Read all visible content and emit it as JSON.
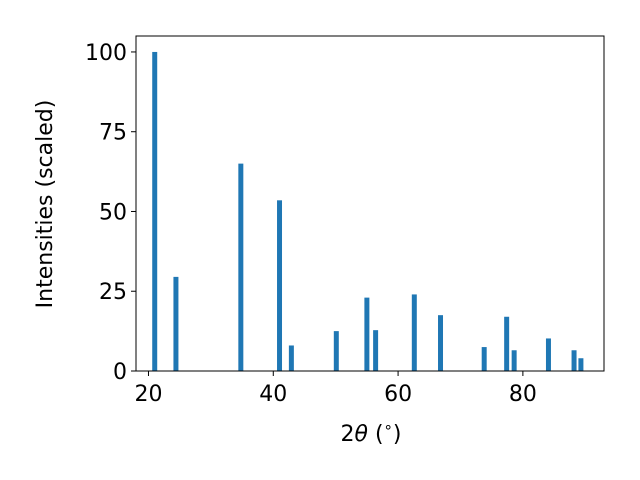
{
  "chart_data": {
    "type": "bar",
    "title": "",
    "xlabel_parts": [
      "2",
      "θ",
      " (",
      "∘",
      ")"
    ],
    "ylabel": "Intensities (scaled)",
    "xlim": [
      18,
      93
    ],
    "ylim": [
      0,
      105
    ],
    "x_ticks": [
      20,
      40,
      60,
      80
    ],
    "y_ticks": [
      0,
      25,
      50,
      75,
      100
    ],
    "bar_width": 0.8,
    "color": "#1f77b4",
    "grid": false,
    "x": [
      21.0,
      24.4,
      34.8,
      41.0,
      42.9,
      50.1,
      55.0,
      56.4,
      62.6,
      66.8,
      73.8,
      77.4,
      78.6,
      84.1,
      88.2,
      89.3
    ],
    "values": [
      100,
      29.5,
      65,
      53.5,
      8,
      12.5,
      23,
      12.8,
      24,
      17.5,
      7.5,
      17,
      6.5,
      10.2,
      6.5,
      4
    ]
  }
}
